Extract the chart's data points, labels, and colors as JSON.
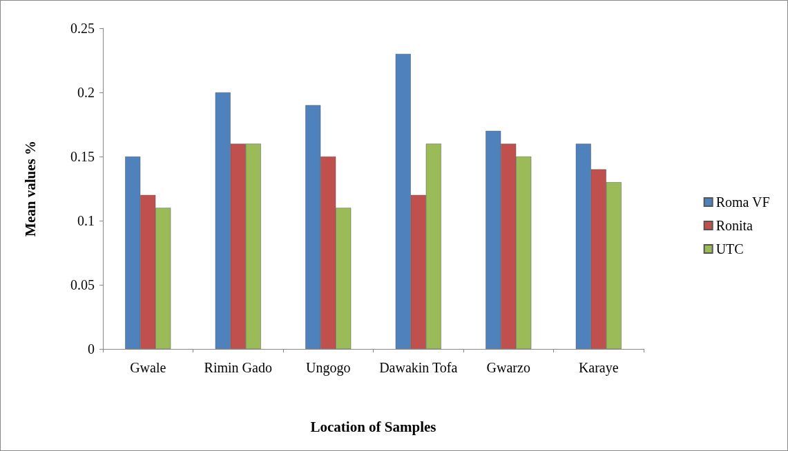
{
  "chart_data": {
    "type": "bar",
    "xlabel": "Location of Samples",
    "ylabel": "Mean values %",
    "categories": [
      "Gwale",
      "Rimin Gado",
      "Ungogo",
      "Dawakin Tofa",
      "Gwarzo",
      "Karaye"
    ],
    "series": [
      {
        "name": "Roma VF",
        "color": "#4f81bd",
        "values": [
          0.15,
          0.2,
          0.19,
          0.23,
          0.17,
          0.16
        ]
      },
      {
        "name": "Ronita",
        "color": "#c0504d",
        "values": [
          0.12,
          0.16,
          0.15,
          0.12,
          0.16,
          0.14
        ]
      },
      {
        "name": "UTC",
        "color": "#9bbb59",
        "values": [
          0.11,
          0.16,
          0.11,
          0.16,
          0.15,
          0.13
        ]
      }
    ],
    "ylim": [
      0,
      0.25
    ],
    "yticks": [
      0,
      0.05,
      0.1,
      0.15,
      0.2,
      0.25
    ],
    "grid": false,
    "legend": "right"
  }
}
